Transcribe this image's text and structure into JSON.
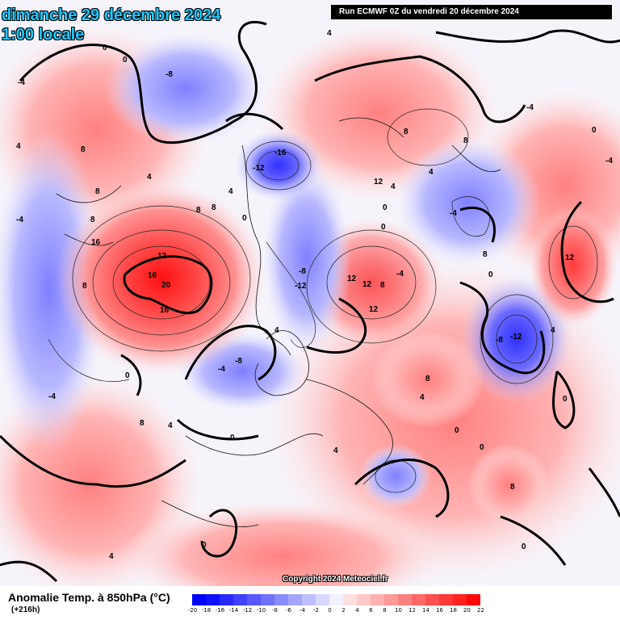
{
  "header": {
    "date": "dimanche 29 décembre 2024",
    "time": "1:00 locale",
    "run": "Run ECMWF 0Z du vendredi 20 décembre 2024"
  },
  "footer": {
    "title": "Anomalie Temp. à 850hPa (°C)",
    "subtitle": "(+216h)",
    "copyright": "Copyright 2024 Meteociel.fr"
  },
  "legend": {
    "ticks": [
      "-20",
      "-18",
      "-16",
      "-14",
      "-12",
      "-10",
      "-8",
      "-6",
      "-4",
      "-2",
      "0",
      "2",
      "4",
      "6",
      "8",
      "10",
      "12",
      "14",
      "16",
      "18",
      "20",
      "22"
    ],
    "colors": [
      "#0000ff",
      "#1010ff",
      "#2828ff",
      "#4040ff",
      "#5858ff",
      "#7070ff",
      "#8a8aff",
      "#a4a4ff",
      "#bebeff",
      "#d8d8ff",
      "#f0f0ff",
      "#ffe0e0",
      "#ffc8c8",
      "#ffb0b0",
      "#ff9898",
      "#ff8080",
      "#ff6868",
      "#ff5050",
      "#ff3838",
      "#ff2020",
      "#ff0808"
    ]
  },
  "contour_labels": [
    "0",
    "-4",
    "-8",
    "0",
    "4",
    "8",
    "4",
    "8",
    "8",
    "16",
    "12",
    "16",
    "20",
    "16",
    "8",
    "8",
    "12",
    "8",
    "-16",
    "-12",
    "4",
    "0",
    "-4",
    "-8",
    "-12",
    "12",
    "12",
    "8",
    "12",
    "8",
    "4",
    "0",
    "4",
    "8",
    "12",
    "-4",
    "-8",
    "-12",
    "0",
    "-8",
    "-4",
    "4",
    "0",
    "8",
    "4",
    "0",
    "-4",
    "8",
    "4",
    "0",
    "8",
    "4",
    "0",
    "0",
    "-4",
    "4",
    "0",
    "8",
    "0",
    "4",
    "-4",
    "4",
    "0",
    "-4",
    "0"
  ]
}
